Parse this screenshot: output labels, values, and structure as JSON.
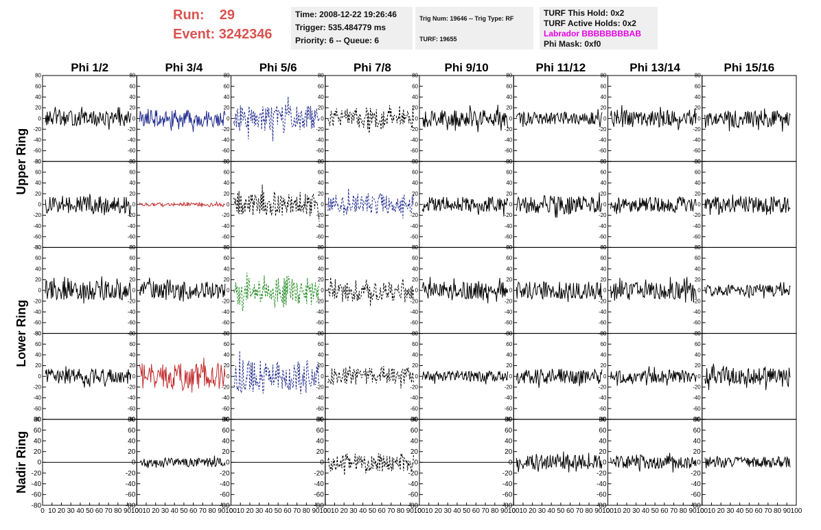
{
  "header": {
    "run_label": "Run:",
    "run_value": "29",
    "event_label": "Event:",
    "event_value": "3242346",
    "time": "Time: 2008-12-22 19:26:46",
    "trigger": "Trigger: 535.484779 ms",
    "priority": "Priority: 6 -- Queue: 6",
    "trig_num": "Trig Num: 19646 -- Trig Type: RF",
    "turf": "TURF: 19655",
    "turf_hold": "TURF This Hold: 0x2",
    "turf_active": "TURF Active Holds: 0x2",
    "labrador": "Labrador BBBBBBBBAB",
    "phi_mask": "Phi Mask: 0xf0"
  },
  "colors": {
    "accent": "#d9534f",
    "labrador": "#e600e6",
    "blue": "#1f2a8c",
    "red": "#c0282a",
    "green": "#1f8a1f",
    "black": "#000000",
    "panel_bg": "#efefef"
  },
  "chart_data": {
    "type": "line",
    "columns": [
      "Phi 1/2",
      "Phi 3/4",
      "Phi 5/6",
      "Phi 7/8",
      "Phi 9/10",
      "Phi 11/12",
      "Phi 13/14",
      "Phi 15/16"
    ],
    "row_groups": [
      "Upper Ring",
      "Lower Ring",
      "Nadir Ring"
    ],
    "ylim": [
      -80,
      80
    ],
    "y_ticks": [
      -80,
      -60,
      -40,
      -20,
      0,
      20,
      40,
      60,
      80
    ],
    "xlim": [
      0,
      100
    ],
    "x_tick_labels": [
      "0",
      "10",
      "20",
      "30",
      "40",
      "50",
      "60",
      "70",
      "80",
      "90",
      "100"
    ],
    "panels": [
      {
        "row": 0,
        "col": 0,
        "color": "black",
        "style": "solid",
        "amp": 14
      },
      {
        "row": 0,
        "col": 1,
        "color": "blue",
        "style": "solid",
        "amp": 16
      },
      {
        "row": 0,
        "col": 2,
        "color": "blue",
        "style": "dashed",
        "amp": 28
      },
      {
        "row": 0,
        "col": 3,
        "color": "black",
        "style": "dashed",
        "amp": 22
      },
      {
        "row": 0,
        "col": 4,
        "color": "black",
        "style": "solid",
        "amp": 16
      },
      {
        "row": 0,
        "col": 5,
        "color": "black",
        "style": "solid",
        "amp": 12
      },
      {
        "row": 0,
        "col": 6,
        "color": "black",
        "style": "solid",
        "amp": 16
      },
      {
        "row": 0,
        "col": 7,
        "color": "black",
        "style": "solid",
        "amp": 16
      },
      {
        "row": 1,
        "col": 0,
        "color": "black",
        "style": "solid",
        "amp": 16
      },
      {
        "row": 1,
        "col": 1,
        "color": "red",
        "style": "solid",
        "amp": 3
      },
      {
        "row": 1,
        "col": 2,
        "color": "black",
        "style": "dashed",
        "amp": 26
      },
      {
        "row": 1,
        "col": 3,
        "color": "blue",
        "style": "dashed",
        "amp": 22
      },
      {
        "row": 1,
        "col": 4,
        "color": "black",
        "style": "solid",
        "amp": 14
      },
      {
        "row": 1,
        "col": 5,
        "color": "black",
        "style": "solid",
        "amp": 16
      },
      {
        "row": 1,
        "col": 6,
        "color": "black",
        "style": "solid",
        "amp": 14
      },
      {
        "row": 1,
        "col": 7,
        "color": "black",
        "style": "solid",
        "amp": 16
      },
      {
        "row": 2,
        "col": 0,
        "color": "black",
        "style": "solid",
        "amp": 18
      },
      {
        "row": 2,
        "col": 1,
        "color": "black",
        "style": "solid",
        "amp": 16
      },
      {
        "row": 2,
        "col": 2,
        "color": "green",
        "style": "dashed",
        "amp": 30
      },
      {
        "row": 2,
        "col": 3,
        "color": "black",
        "style": "dashed",
        "amp": 22
      },
      {
        "row": 2,
        "col": 4,
        "color": "black",
        "style": "solid",
        "amp": 16
      },
      {
        "row": 2,
        "col": 5,
        "color": "black",
        "style": "solid",
        "amp": 16
      },
      {
        "row": 2,
        "col": 6,
        "color": "black",
        "style": "solid",
        "amp": 16
      },
      {
        "row": 2,
        "col": 7,
        "color": "black",
        "style": "solid",
        "amp": 10
      },
      {
        "row": 3,
        "col": 0,
        "color": "black",
        "style": "solid",
        "amp": 14
      },
      {
        "row": 3,
        "col": 1,
        "color": "red",
        "style": "solid",
        "amp": 24
      },
      {
        "row": 3,
        "col": 2,
        "color": "blue",
        "style": "dashed",
        "amp": 32
      },
      {
        "row": 3,
        "col": 3,
        "color": "black",
        "style": "dashed",
        "amp": 18
      },
      {
        "row": 3,
        "col": 4,
        "color": "black",
        "style": "solid",
        "amp": 10
      },
      {
        "row": 3,
        "col": 5,
        "color": "black",
        "style": "solid",
        "amp": 14
      },
      {
        "row": 3,
        "col": 6,
        "color": "black",
        "style": "solid",
        "amp": 12
      },
      {
        "row": 3,
        "col": 7,
        "color": "black",
        "style": "solid",
        "amp": 16
      },
      {
        "row": 4,
        "col": 0,
        "color": "black",
        "style": "flat",
        "amp": 0
      },
      {
        "row": 4,
        "col": 1,
        "color": "black",
        "style": "solid",
        "amp": 8
      },
      {
        "row": 4,
        "col": 2,
        "color": "black",
        "style": "flat",
        "amp": 0
      },
      {
        "row": 4,
        "col": 3,
        "color": "black",
        "style": "dashed",
        "amp": 18
      },
      {
        "row": 4,
        "col": 4,
        "color": "black",
        "style": "flat",
        "amp": 0
      },
      {
        "row": 4,
        "col": 5,
        "color": "black",
        "style": "solid",
        "amp": 14
      },
      {
        "row": 4,
        "col": 6,
        "color": "black",
        "style": "solid",
        "amp": 12
      },
      {
        "row": 4,
        "col": 7,
        "color": "black",
        "style": "solid",
        "amp": 10
      }
    ]
  }
}
